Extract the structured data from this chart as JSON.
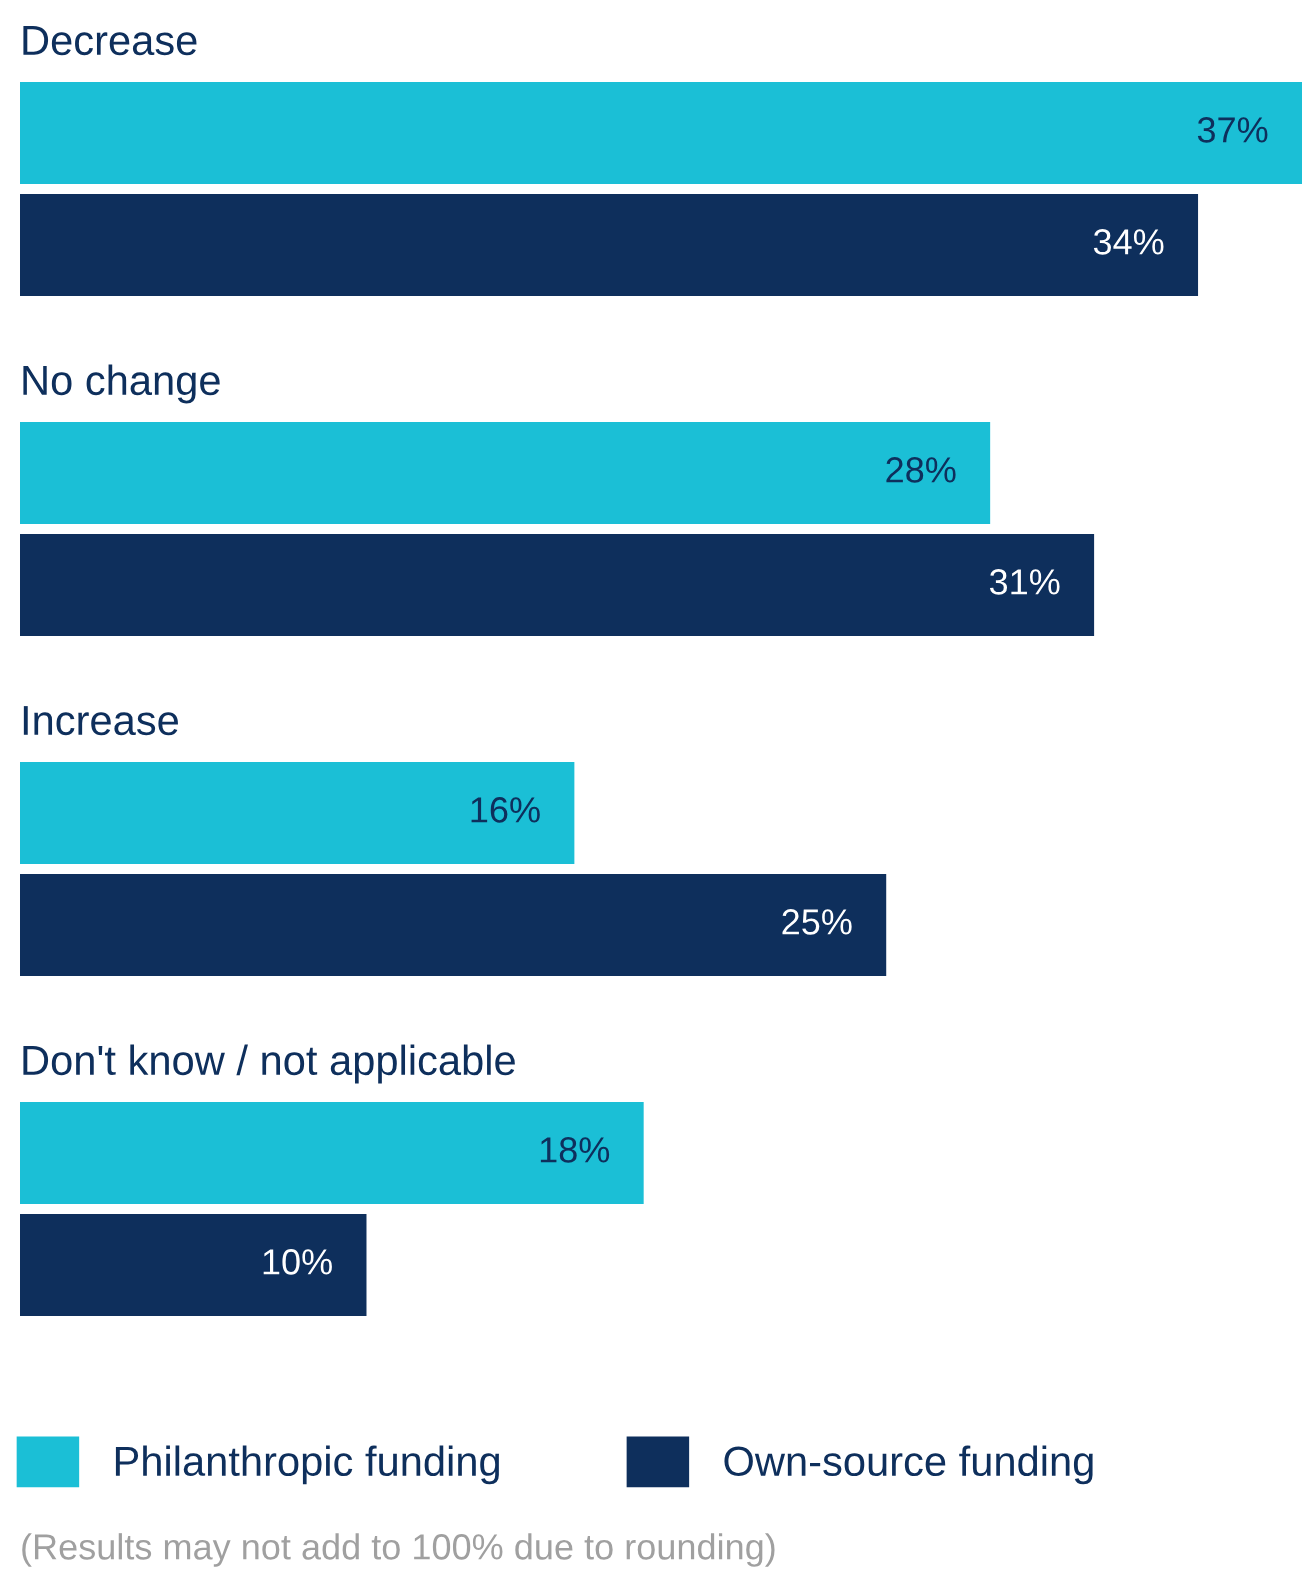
{
  "chart_data": {
    "type": "bar",
    "orientation": "horizontal",
    "categories": [
      "Decrease",
      "No change",
      "Increase",
      "Don't know / not applicable"
    ],
    "series": [
      {
        "name": "Philanthropic funding",
        "color": "#1bbfd6",
        "values": [
          37,
          28,
          16,
          18
        ],
        "value_labels": [
          "37%",
          "28%",
          "16%",
          "18%"
        ]
      },
      {
        "name": "Own-source funding",
        "color": "#0e2f5c",
        "values": [
          34,
          31,
          25,
          10
        ],
        "value_labels": [
          "34%",
          "31%",
          "25%",
          "10%"
        ]
      }
    ],
    "xlim": [
      0,
      37
    ],
    "legend": "bottom",
    "annotations": [
      "(Results may not add to 100% due to rounding)"
    ]
  }
}
